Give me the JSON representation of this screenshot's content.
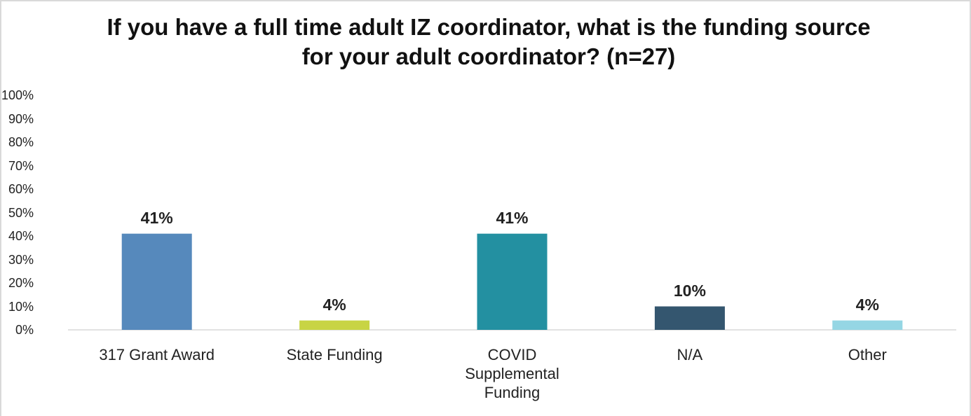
{
  "chart_data": {
    "type": "bar",
    "title": "If you have a full time adult IZ coordinator, what is the funding source for your adult coordinator? (n=27)",
    "categories": [
      "317 Grant Award",
      "State Funding",
      "COVID Supplemental Funding",
      "N/A",
      "Other"
    ],
    "values": [
      41,
      4,
      41,
      10,
      4
    ],
    "value_labels": [
      "41%",
      "4%",
      "41%",
      "10%",
      "4%"
    ],
    "colors": [
      "#5689bc",
      "#c8d444",
      "#2390a1",
      "#34566f",
      "#95d6e4"
    ],
    "ylim": [
      0,
      100
    ],
    "yticks": [
      {
        "value": 0,
        "label": "0%"
      },
      {
        "value": 10,
        "label": "10%"
      },
      {
        "value": 20,
        "label": "20%"
      },
      {
        "value": 30,
        "label": "30%"
      },
      {
        "value": 40,
        "label": "40%"
      },
      {
        "value": 50,
        "label": "50%"
      },
      {
        "value": 60,
        "label": "60%"
      },
      {
        "value": 70,
        "label": "70%"
      },
      {
        "value": 80,
        "label": "80%"
      },
      {
        "value": 90,
        "label": "90%"
      },
      {
        "value": 100,
        "label": "100%"
      }
    ],
    "grid": false
  }
}
